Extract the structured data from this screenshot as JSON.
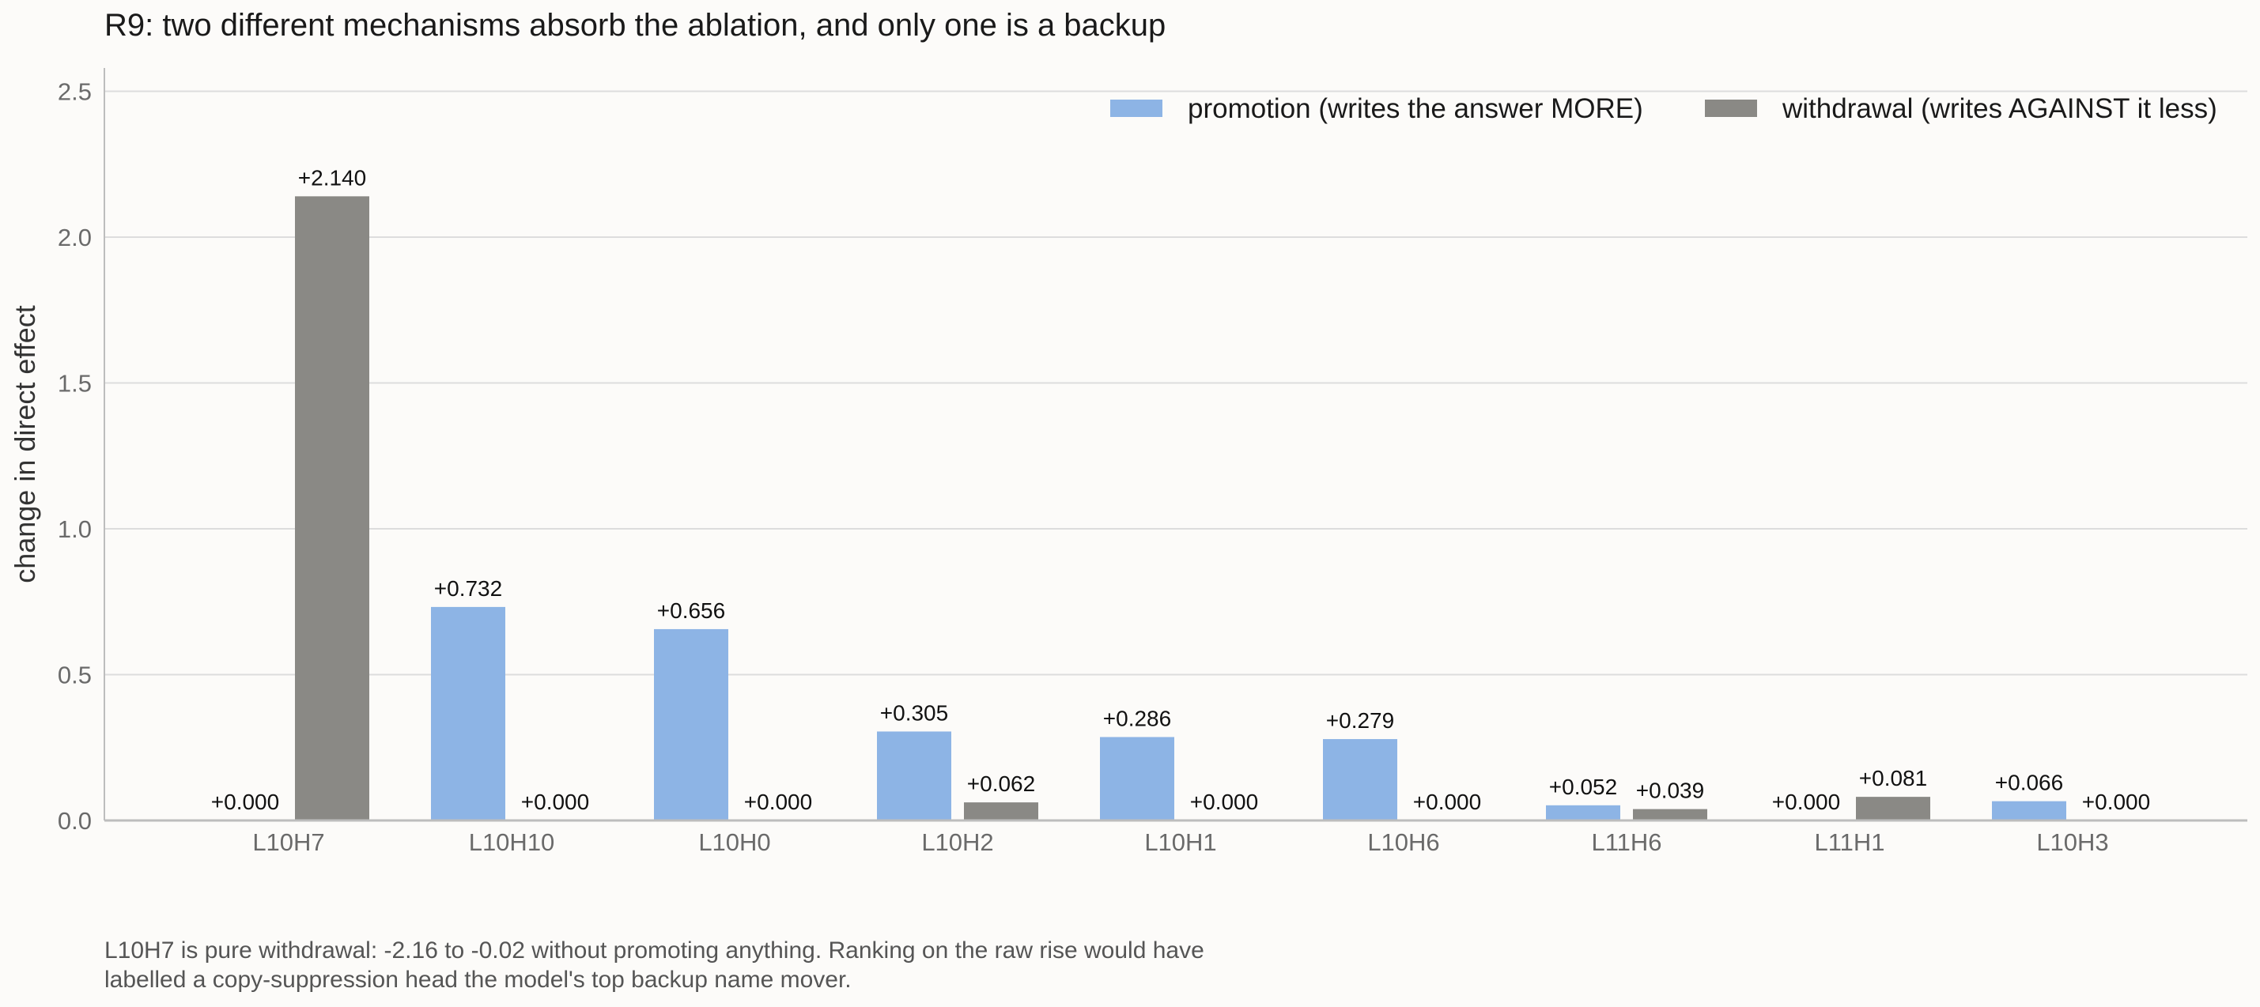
{
  "colors": {
    "promotion": "#8db4e5",
    "withdrawal": "#8a8985",
    "grid": "#dddddd",
    "axis": "#bdbdbd"
  },
  "chart_data": {
    "type": "bar",
    "title": "R9: two different mechanisms absorb the ablation, and only one is a backup",
    "xlabel": "",
    "ylabel": "change in direct effect",
    "ylim": [
      0,
      2.58
    ],
    "yticks": [
      "0.0",
      "0.5",
      "1.0",
      "1.5",
      "2.0",
      "2.5"
    ],
    "ytick_values": [
      0,
      0.5,
      1.0,
      1.5,
      2.0,
      2.5
    ],
    "grid": "horizontal",
    "legend_position": "top-right",
    "categories": [
      "L10H7",
      "L10H10",
      "L10H0",
      "L10H2",
      "L10H1",
      "L10H6",
      "L11H6",
      "L11H1",
      "L10H3"
    ],
    "series": [
      {
        "name": "promotion (writes the answer MORE)",
        "values": [
          0.0,
          0.732,
          0.656,
          0.305,
          0.286,
          0.279,
          0.052,
          0.0,
          0.066
        ],
        "labels": [
          "+0.000",
          "+0.732",
          "+0.656",
          "+0.305",
          "+0.286",
          "+0.279",
          "+0.052",
          "+0.000",
          "+0.066"
        ]
      },
      {
        "name": "withdrawal (writes AGAINST it less)",
        "values": [
          2.14,
          0.0,
          0.0,
          0.062,
          0.0,
          0.0,
          0.039,
          0.081,
          0.0
        ],
        "labels": [
          "+2.140",
          "+0.000",
          "+0.000",
          "+0.062",
          "+0.000",
          "+0.000",
          "+0.039",
          "+0.081",
          "+0.000"
        ]
      }
    ]
  },
  "footnote": {
    "line1": "L10H7 is pure withdrawal: -2.16 to -0.02 without promoting anything. Ranking on the raw rise would have",
    "line2": "labelled a copy-suppression head the model's top backup name mover."
  }
}
